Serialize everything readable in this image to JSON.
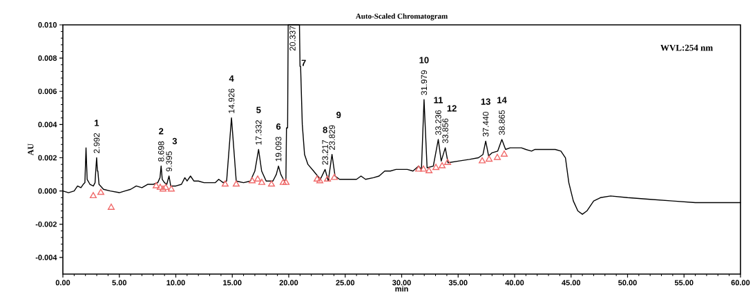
{
  "chart_data": {
    "type": "line",
    "title": "Auto-Scaled Chromatogram",
    "xlabel": "min",
    "ylabel": "AU",
    "xlim": [
      0,
      60
    ],
    "ylim": [
      -0.005,
      0.01
    ],
    "xticks": [
      {
        "value": 0,
        "label": "0.00"
      },
      {
        "value": 5,
        "label": "5.00"
      },
      {
        "value": 10,
        "label": "10.00"
      },
      {
        "value": 15,
        "label": "15.00"
      },
      {
        "value": 20,
        "label": "20.00"
      },
      {
        "value": 25,
        "label": "25.00"
      },
      {
        "value": 30,
        "label": "30.00"
      },
      {
        "value": 35,
        "label": "35.00"
      },
      {
        "value": 40,
        "label": "40.00"
      },
      {
        "value": 45,
        "label": "45.00"
      },
      {
        "value": 50,
        "label": "50.00"
      },
      {
        "value": 55,
        "label": "55.00"
      },
      {
        "value": 60,
        "label": "60.00"
      }
    ],
    "yticks": [
      {
        "value": -0.004,
        "label": "-0.004"
      },
      {
        "value": -0.002,
        "label": "-0.002"
      },
      {
        "value": 0,
        "label": "0.000"
      },
      {
        "value": 0.002,
        "label": "0.002"
      },
      {
        "value": 0.004,
        "label": "0.004"
      },
      {
        "value": 0.006,
        "label": "0.006"
      },
      {
        "value": 0.008,
        "label": "0.008"
      },
      {
        "value": 0.01,
        "label": "0.010"
      }
    ],
    "grid": false,
    "series": [
      {
        "color": "#000000",
        "marker": "none",
        "line_style": "solid",
        "x": [
          0,
          0.5,
          1.0,
          1.3,
          1.6,
          1.8,
          1.95,
          2.05,
          2.15,
          2.4,
          2.7,
          2.85,
          2.92,
          2.99,
          3.06,
          3.1,
          3.2,
          3.6,
          4.2,
          5.0,
          5.5,
          6.0,
          6.5,
          7.0,
          7.5,
          8.0,
          8.4,
          8.6,
          8.7,
          8.8,
          9.0,
          9.2,
          9.4,
          9.55,
          10.0,
          10.5,
          10.8,
          11.0,
          11.3,
          11.6,
          12.0,
          12.5,
          13.0,
          13.5,
          13.8,
          14.2,
          14.5,
          14.93,
          15.35,
          16.0,
          16.6,
          17.0,
          17.33,
          17.6,
          18.0,
          18.6,
          18.9,
          19.09,
          19.3,
          19.6,
          19.75,
          19.8,
          19.9,
          19.95,
          20.95,
          21.0,
          21.05,
          21.2,
          21.4,
          21.7,
          22.2,
          22.8,
          23.22,
          23.5,
          23.83,
          24.1,
          24.5,
          25.5,
          26.0,
          26.4,
          26.8,
          27.5,
          28.0,
          28.5,
          29.0,
          29.5,
          30.0,
          30.5,
          31.0,
          31.5,
          31.75,
          31.98,
          32.25,
          32.8,
          33.24,
          33.5,
          33.86,
          34.1,
          35.0,
          36.0,
          36.8,
          37.2,
          37.44,
          37.7,
          38.0,
          38.5,
          38.87,
          39.2,
          39.6,
          40.0,
          40.6,
          41.0,
          41.5,
          41.8,
          42.3,
          43.0,
          43.6,
          44.1,
          44.5,
          44.8,
          45.2,
          45.6,
          46.0,
          46.4,
          47.0,
          47.6,
          48.5,
          50,
          52,
          54,
          56,
          58,
          60
        ],
        "values": [
          0.0,
          -0.0001,
          0.0,
          0.0003,
          0.0002,
          0.0004,
          0.0005,
          0.0026,
          0.0007,
          0.0004,
          0.0003,
          0.0005,
          0.0013,
          0.002,
          0.0012,
          0.0012,
          0.0004,
          0.0001,
          0.0,
          -0.0001,
          0.0,
          0.0001,
          0.0003,
          0.0002,
          0.0004,
          0.0004,
          0.0005,
          0.0008,
          0.0015,
          0.0007,
          0.0005,
          0.0004,
          0.0009,
          0.0003,
          0.0003,
          0.0004,
          0.0008,
          0.0006,
          0.0009,
          0.0006,
          0.0006,
          0.0005,
          0.0005,
          0.0005,
          0.0007,
          0.0005,
          0.0006,
          0.0044,
          0.0006,
          0.0005,
          0.0006,
          0.0012,
          0.0025,
          0.0012,
          0.0006,
          0.0006,
          0.001,
          0.0015,
          0.001,
          0.0006,
          0.0007,
          0.0038,
          0.0038,
          0.01,
          0.01,
          0.0075,
          0.0075,
          0.004,
          0.0022,
          0.0016,
          0.0012,
          0.0007,
          0.0013,
          0.0006,
          0.0022,
          0.0009,
          0.0007,
          0.0007,
          0.0007,
          0.0009,
          0.0007,
          0.0008,
          0.0009,
          0.0012,
          0.0012,
          0.0013,
          0.0013,
          0.0013,
          0.0012,
          0.0015,
          0.0013,
          0.0055,
          0.0014,
          0.0015,
          0.0031,
          0.0018,
          0.0026,
          0.0017,
          0.0018,
          0.0019,
          0.002,
          0.0022,
          0.003,
          0.0021,
          0.0023,
          0.0024,
          0.0031,
          0.0025,
          0.0026,
          0.0026,
          0.0026,
          0.0025,
          0.0024,
          0.0025,
          0.0025,
          0.0025,
          0.0025,
          0.0024,
          0.002,
          0.0005,
          -0.0006,
          -0.0012,
          -0.0014,
          -0.0012,
          -0.0006,
          -0.0004,
          -0.0003,
          -0.0004,
          -0.0005,
          -0.0006,
          -0.0007,
          -0.0007,
          -0.0007
        ]
      },
      {
        "type": "scatter",
        "color": "#f06a6a",
        "marker": "triangle",
        "x": [
          2.69,
          3.36,
          4.28,
          8.26,
          8.62,
          8.87,
          9.11,
          9.6,
          14.37,
          15.35,
          16.76,
          17.25,
          17.61,
          18.47,
          19.51,
          19.76,
          22.51,
          22.75,
          23.43,
          24.04,
          31.5,
          31.93,
          32.42,
          33.03,
          33.58,
          34.07,
          37.13,
          37.74,
          38.47,
          39.08
        ],
        "values": [
          -0.0003,
          -0.0001,
          -0.001,
          0.0003,
          0.0002,
          0.0001,
          0.0002,
          0.0001,
          0.0004,
          0.0004,
          0.0006,
          0.0007,
          0.0005,
          0.0004,
          0.0005,
          0.0005,
          0.0007,
          0.0006,
          0.0007,
          0.0008,
          0.0013,
          0.0013,
          0.0012,
          0.0014,
          0.0015,
          0.0017,
          0.0018,
          0.0019,
          0.002,
          0.0022
        ]
      }
    ],
    "annotations": [
      "WVL:254 nm",
      "1",
      "2",
      "3",
      "4",
      "5",
      "6",
      "7",
      "8",
      "9",
      "10",
      "11",
      "12",
      "13",
      "14",
      {
        "text": "2.992",
        "x": 2.99,
        "y": 0.002
      },
      {
        "text": "8.698",
        "x": 8.7,
        "y": 0.0015
      },
      {
        "text": "9.395",
        "x": 9.4,
        "y": 0.0009
      },
      {
        "text": "14.926",
        "x": 14.93,
        "y": 0.0044
      },
      {
        "text": "17.332",
        "x": 17.33,
        "y": 0.0025
      },
      {
        "text": "19.093",
        "x": 19.09,
        "y": 0.0015
      },
      {
        "text": "20.337",
        "x": 20.337,
        "y": 0.01
      },
      {
        "text": "23.217",
        "x": 23.22,
        "y": 0.0013
      },
      {
        "text": "23.829",
        "x": 23.83,
        "y": 0.0022
      },
      {
        "text": "31.979",
        "x": 31.98,
        "y": 0.0055
      },
      {
        "text": "33.236",
        "x": 33.24,
        "y": 0.0031
      },
      {
        "text": "33.856",
        "x": 33.86,
        "y": 0.0026
      },
      {
        "text": "37.440",
        "x": 37.44,
        "y": 0.003
      },
      {
        "text": "38.865",
        "x": 38.87,
        "y": 0.0031
      }
    ]
  }
}
